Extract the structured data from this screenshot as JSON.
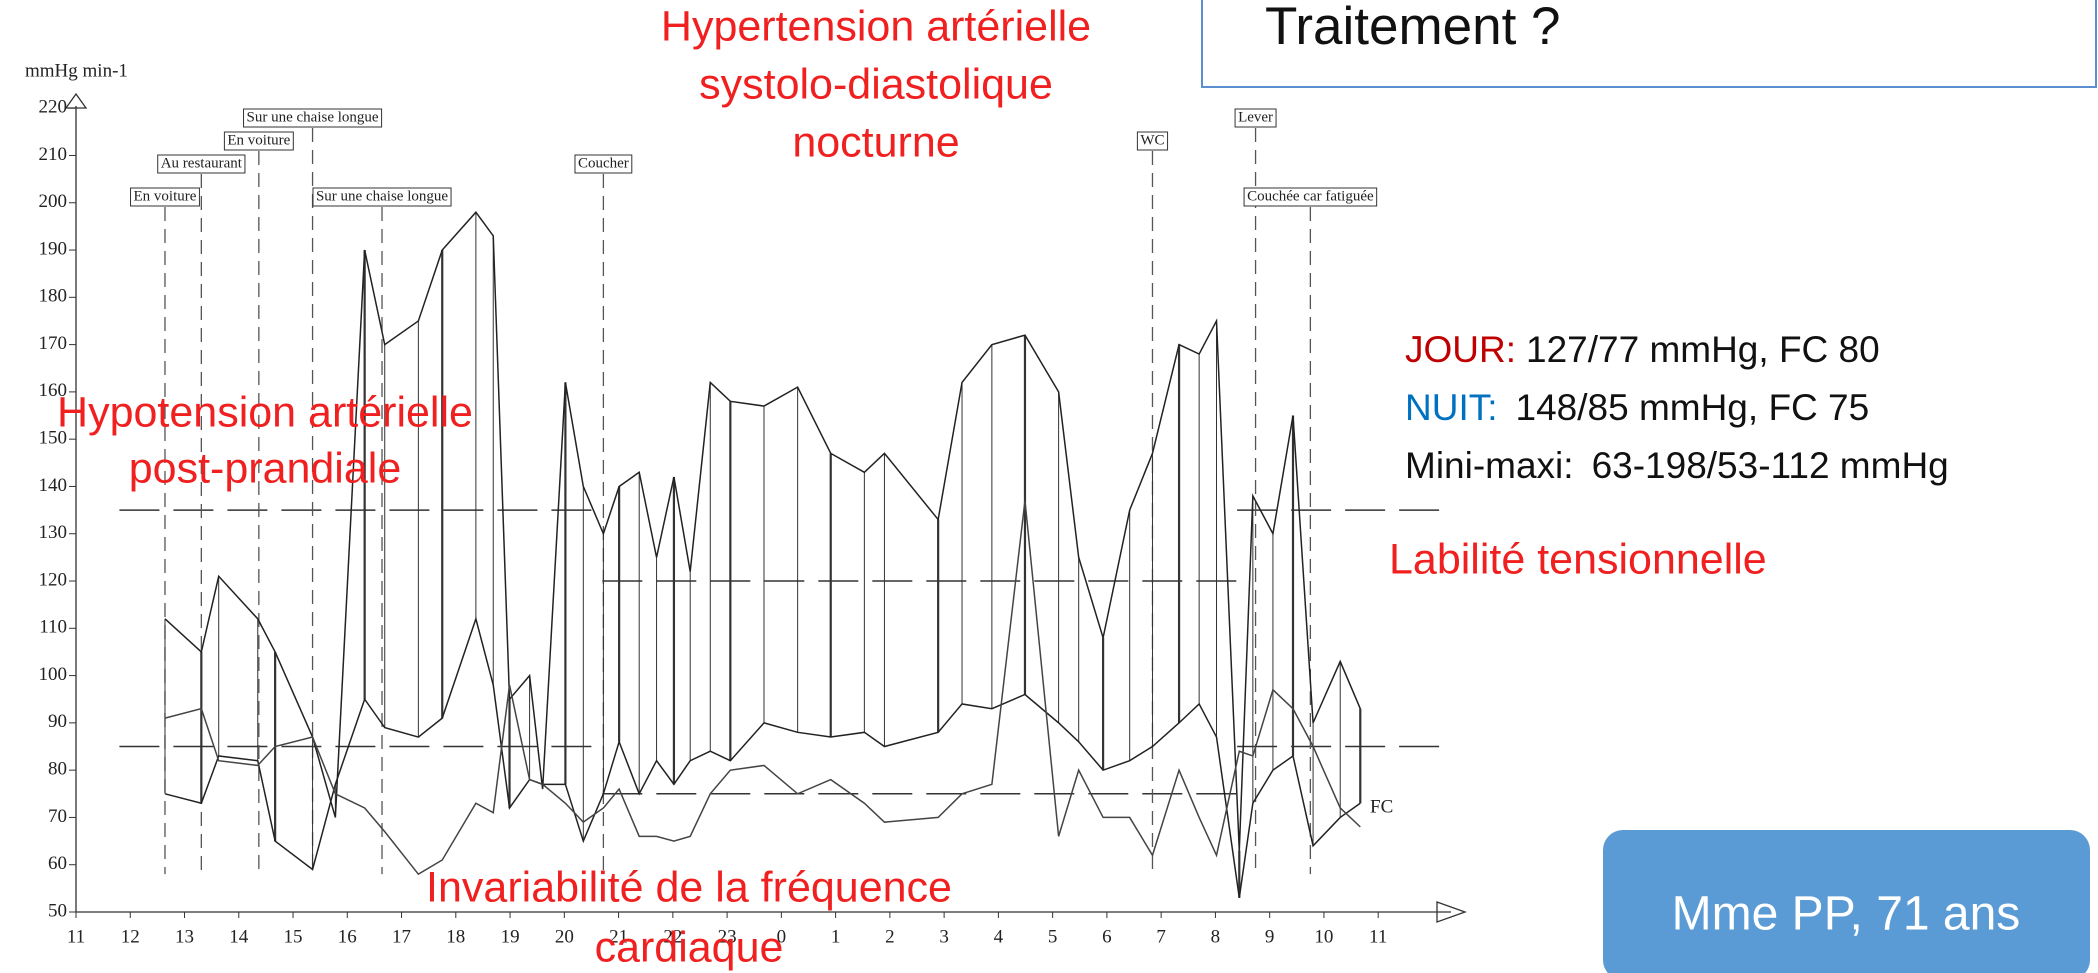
{
  "chart_data": {
    "type": "line",
    "y_label": "mmHg min-1",
    "x": [
      12.64,
      13.31,
      13.63,
      14.35,
      14.67,
      15.36,
      15.78,
      16.32,
      16.69,
      17.31,
      17.75,
      18.37,
      18.69,
      18.99,
      19.36,
      19.6,
      20.02,
      20.35,
      20.72,
      21.01,
      21.38,
      21.7,
      22.02,
      22.32,
      22.69,
      23.06,
      23.68,
      24.3,
      24.91,
      25.53,
      25.9,
      26.89,
      27.33,
      27.88,
      28.49,
      29.11,
      29.48,
      29.93,
      30.42,
      30.84,
      31.33,
      31.7,
      32.02,
      32.44,
      32.69,
      33.06,
      33.43,
      33.8,
      34.3,
      34.67
    ],
    "series": [
      {
        "name": "PAS",
        "color": "#222222",
        "values": [
          112,
          105,
          121,
          112,
          105,
          87,
          70,
          190,
          170,
          175,
          190,
          198,
          193,
          95,
          100,
          76,
          162,
          140,
          130,
          140,
          143,
          125,
          142,
          122,
          162,
          158,
          157,
          161,
          147,
          143,
          147,
          133,
          162,
          170,
          172,
          160,
          125,
          108,
          135,
          147,
          170,
          168,
          175,
          63,
          138,
          130,
          155,
          90,
          103,
          93
        ]
      },
      {
        "name": "PAD",
        "color": "#222222",
        "values": [
          75,
          73,
          83,
          82,
          65,
          59,
          77,
          95,
          89,
          87,
          91,
          112,
          98,
          72,
          78,
          77,
          77,
          65,
          75,
          86,
          75,
          82,
          77,
          82,
          84,
          82,
          90,
          88,
          87,
          88,
          85,
          88,
          94,
          93,
          96,
          90,
          86,
          80,
          82,
          85,
          90,
          94,
          87,
          53,
          73,
          80,
          83,
          64,
          70,
          73
        ]
      },
      {
        "name": "FC",
        "color": "#444444",
        "values": [
          91,
          93,
          82,
          81,
          85,
          87,
          75,
          72,
          67,
          58,
          61,
          73,
          71,
          98,
          78,
          77,
          73,
          69,
          72,
          76,
          66,
          66,
          65,
          66,
          75,
          80,
          81,
          75,
          78,
          73,
          69,
          70,
          75,
          77,
          137,
          66,
          80,
          70,
          70,
          62,
          80,
          70,
          62,
          84,
          83,
          97,
          93,
          85,
          72,
          68
        ]
      }
    ],
    "xlim": [
      11,
      36.6
    ],
    "ylim": [
      50,
      223
    ],
    "xticks": [
      11,
      12,
      13,
      14,
      15,
      16,
      17,
      18,
      19,
      20,
      21,
      22,
      23,
      {
        "value": 24,
        "label": "0"
      },
      {
        "value": 25,
        "label": "1"
      },
      {
        "value": 26,
        "label": "2"
      },
      {
        "value": 27,
        "label": "3"
      },
      {
        "value": 28,
        "label": "4"
      },
      {
        "value": 29,
        "label": "5"
      },
      {
        "value": 30,
        "label": "6"
      },
      {
        "value": 31,
        "label": "7"
      },
      {
        "value": 32,
        "label": "8"
      },
      {
        "value": 33,
        "label": "9"
      },
      {
        "value": 34,
        "label": "10"
      },
      {
        "value": 35,
        "label": "11"
      }
    ],
    "yticks": [
      50,
      60,
      70,
      80,
      90,
      100,
      110,
      120,
      130,
      140,
      150,
      160,
      170,
      180,
      190,
      200,
      210,
      220
    ],
    "reference_lines": [
      {
        "value": 135,
        "x": [
          11.8,
          20.7
        ]
      },
      {
        "value": 85,
        "x": [
          11.8,
          20.7
        ]
      },
      {
        "value": 120,
        "x": [
          20.7,
          32.4
        ]
      },
      {
        "value": 75,
        "x": [
          20.7,
          32.4
        ]
      },
      {
        "value": 135,
        "x": [
          32.4,
          36.2
        ]
      },
      {
        "value": 85,
        "x": [
          32.4,
          36.2
        ]
      }
    ],
    "events": [
      {
        "label": "En voiture",
        "x": 12.64
      },
      {
        "label": "Au restaurant",
        "x": 13.31
      },
      {
        "label": "En voiture",
        "x": 14.37
      },
      {
        "label": "Sur une chaise longue",
        "x": 15.36
      },
      {
        "label": "Sur une chaise longue",
        "x": 16.64
      },
      {
        "label": "Coucher",
        "x": 20.72
      },
      {
        "label": "WC",
        "x": 30.84
      },
      {
        "label": "Lever",
        "x": 32.74
      },
      {
        "label": "Couchée car fatiguée",
        "x": 33.75
      }
    ]
  },
  "slide": {
    "title": "Traitement ?",
    "annotation_night": [
      "Hypertension artérielle",
      "systolo-diastolique",
      "nocturne"
    ],
    "annotation_postprandial": [
      "Hypotension artérielle",
      "post-prandiale"
    ],
    "annotation_heart_rate": [
      "Invariabilité de la fréquence",
      "cardiaque"
    ],
    "annotation_lability": "Labilité tensionnelle",
    "series_end_label": "FC",
    "stats": [
      {
        "label": "JOUR:",
        "text": "127/77 mmHg, FC 80"
      },
      {
        "label": "NUIT:",
        "text": "148/85 mmHg, FC 75"
      },
      {
        "label": "Mini-maxi:",
        "text": "63-198/53-112 mmHg"
      }
    ],
    "patient": "Mme PP, 71 ans"
  }
}
